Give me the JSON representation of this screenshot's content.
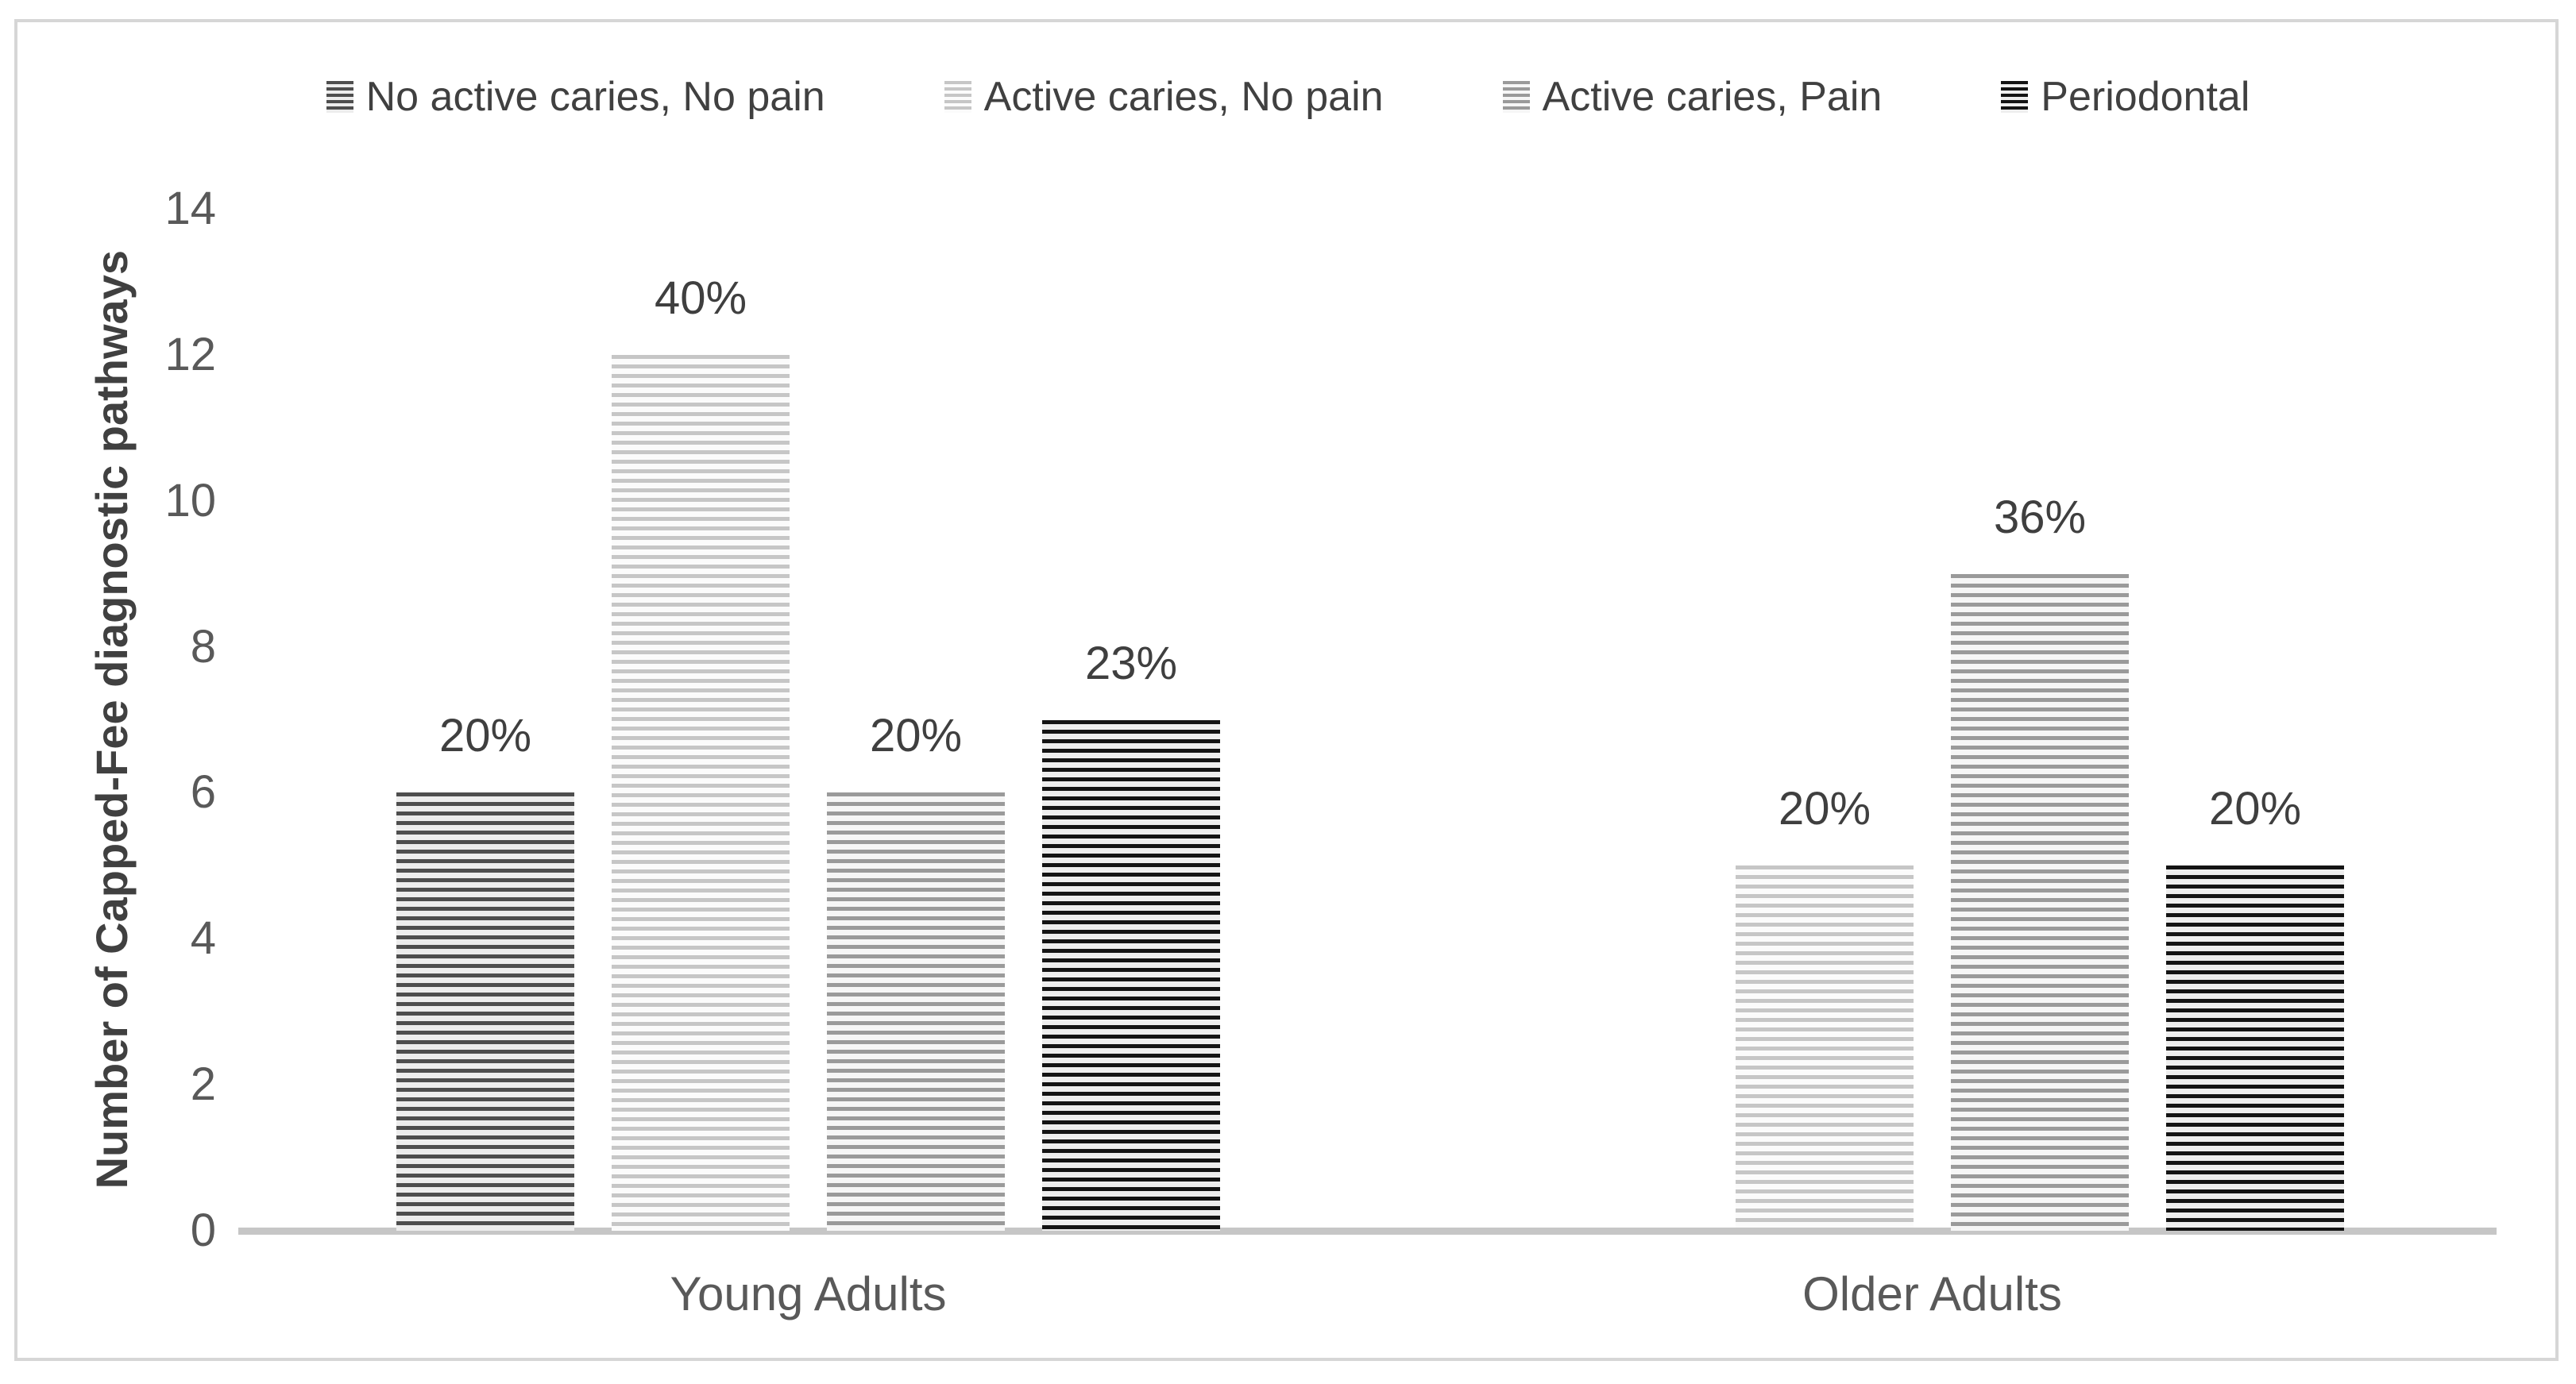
{
  "frame": {
    "border_color": "#d6d6d6",
    "background": "#ffffff"
  },
  "chart_data": {
    "type": "bar",
    "title": "",
    "xlabel": "",
    "ylabel": "Number of Capped-Fee diagnostic pathways",
    "ylim": [
      0,
      14
    ],
    "yticks": [
      0,
      2,
      4,
      6,
      8,
      10,
      12,
      14
    ],
    "grid": false,
    "legend_position": "top-center",
    "categories": [
      "Young Adults",
      "Older Adults"
    ],
    "series": [
      {
        "name": "No active caries, No pain",
        "values": [
          6,
          null
        ],
        "data_labels": [
          "20%",
          null
        ],
        "pattern": "horizontal-stripes",
        "stripe_color": "#4e4e4e",
        "stripe_bg": "#ededed"
      },
      {
        "name": "Active caries, No pain",
        "values": [
          12,
          5
        ],
        "data_labels": [
          "40%",
          "20%"
        ],
        "pattern": "horizontal-stripes",
        "stripe_color": "#c6c6c6",
        "stripe_bg": "#fbfbfb"
      },
      {
        "name": "Active caries, Pain",
        "values": [
          6,
          9
        ],
        "data_labels": [
          "20%",
          "36%"
        ],
        "pattern": "horizontal-stripes",
        "stripe_color": "#9a9a9a",
        "stripe_bg": "#f6f6f6"
      },
      {
        "name": "Periodontal",
        "values": [
          7,
          5
        ],
        "data_labels": [
          "23%",
          "20%"
        ],
        "pattern": "horizontal-stripes",
        "stripe_color": "#141414",
        "stripe_bg": "#eeeeee"
      }
    ],
    "axis_color": "#c6c6c6",
    "tick_text_color": "#595959",
    "data_label_color": "#3f3f3f"
  }
}
